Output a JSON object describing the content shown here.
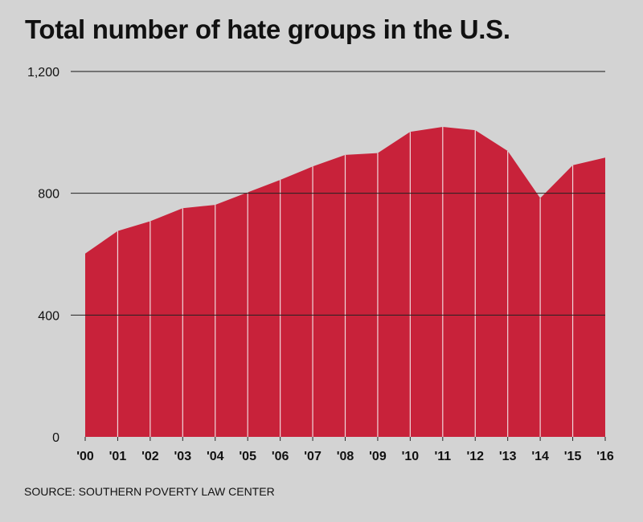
{
  "chart_data": {
    "type": "area",
    "title": "Total number of hate groups in the U.S.",
    "source": "SOURCE: SOUTHERN POVERTY LAW CENTER",
    "categories": [
      "'00",
      "'01",
      "'02",
      "'03",
      "'04",
      "'05",
      "'06",
      "'07",
      "'08",
      "'09",
      "'10",
      "'11",
      "'12",
      "'13",
      "'14",
      "'15",
      "'16"
    ],
    "series": [
      {
        "values": [
          602,
          676,
          708,
          751,
          762,
          803,
          844,
          888,
          926,
          932,
          1002,
          1018,
          1007,
          939,
          784,
          892,
          917
        ]
      }
    ],
    "ylim": [
      0,
      1200
    ],
    "yticks": [
      0,
      400,
      800,
      1200
    ],
    "ytick_labels": [
      "0",
      "400",
      "800",
      "1,200"
    ],
    "grid": true,
    "colors": {
      "fill": "#c8223a",
      "divider": "#f0d7db",
      "grid": "#222222"
    }
  }
}
